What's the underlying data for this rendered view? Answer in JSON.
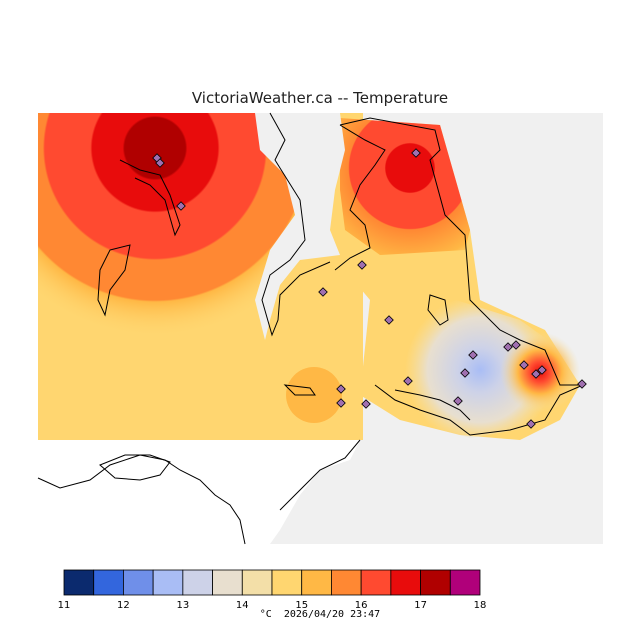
{
  "title": "VictoriaWeather.ca -- Temperature",
  "legend": {
    "ticks": [
      "11",
      "12",
      "13",
      "14",
      "15",
      "16",
      "17",
      "18"
    ],
    "unit": "°C",
    "timestamp": "2026/04/20 23:47",
    "colors": [
      "#0b2a6e",
      "#3366dd",
      "#6f8fe9",
      "#a9bdf5",
      "#cdd2e8",
      "#e8dfcf",
      "#f3dfa8",
      "#ffd670",
      "#ffb845",
      "#ff8833",
      "#ff4a30",
      "#e80c0c",
      "#b00000",
      "#b0007a"
    ]
  },
  "colors": {
    "land_background": "#f0f0f0",
    "water": "#ffffff",
    "station_marker": "#a070b0"
  }
}
